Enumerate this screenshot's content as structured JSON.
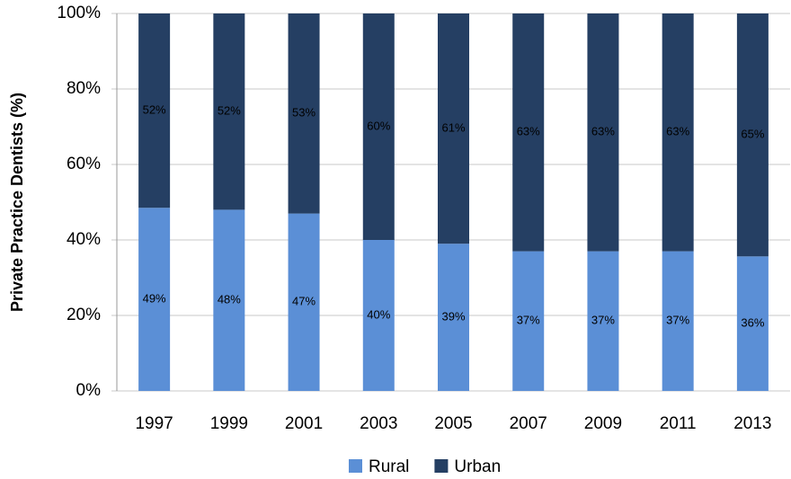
{
  "chart_data": {
    "type": "bar",
    "stack": "percent",
    "y_label": "Private Practice Dentists (%)",
    "categories": [
      "1997",
      "1999",
      "2001",
      "2003",
      "2005",
      "2007",
      "2009",
      "2011",
      "2013"
    ],
    "series": [
      {
        "name": "Rural",
        "color": "#5b8fd6",
        "values": [
          49,
          48,
          47,
          40,
          39,
          37,
          37,
          37,
          36
        ],
        "value_labels": [
          "49%",
          "48%",
          "47%",
          "40%",
          "39%",
          "37%",
          "37%",
          "37%",
          "36%"
        ]
      },
      {
        "name": "Urban",
        "color": "#253f63",
        "values": [
          52,
          52,
          53,
          60,
          61,
          63,
          63,
          63,
          65
        ],
        "value_labels": [
          "52%",
          "52%",
          "53%",
          "60%",
          "61%",
          "63%",
          "63%",
          "63%",
          "65%"
        ]
      }
    ],
    "ylim": [
      0,
      100
    ],
    "yticks": [
      {
        "value": 0,
        "label": "0%"
      },
      {
        "value": 20,
        "label": "20%"
      },
      {
        "value": 40,
        "label": "40%"
      },
      {
        "value": 60,
        "label": "60%"
      },
      {
        "value": 80,
        "label": "80%"
      },
      {
        "value": 100,
        "label": "100%"
      }
    ],
    "grid": true,
    "legend": "bottom"
  }
}
